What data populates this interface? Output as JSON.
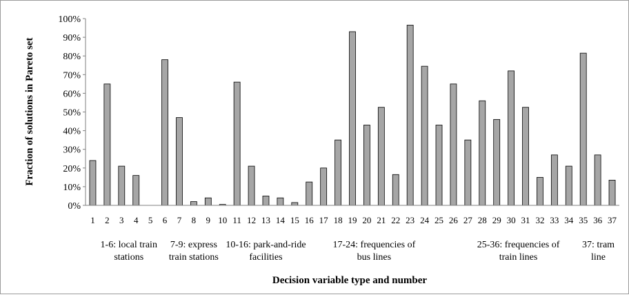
{
  "chart_data": {
    "type": "bar",
    "title": "",
    "xlabel": "Decision variable type and number",
    "ylabel": "Fraction of solutions in Pareto set",
    "ylim": [
      0,
      1
    ],
    "yticks": [
      "0%",
      "10%",
      "20%",
      "30%",
      "40%",
      "50%",
      "60%",
      "70%",
      "80%",
      "90%",
      "100%"
    ],
    "grid": false,
    "bar_color": "#a6a6a6",
    "bar_edge_color": "#000000",
    "categories": [
      "1",
      "2",
      "3",
      "4",
      "5",
      "6",
      "7",
      "8",
      "9",
      "10",
      "11",
      "12",
      "13",
      "14",
      "15",
      "16",
      "17",
      "18",
      "19",
      "20",
      "21",
      "22",
      "23",
      "24",
      "25",
      "26",
      "27",
      "28",
      "29",
      "30",
      "31",
      "32",
      "33",
      "34",
      "35",
      "36",
      "37"
    ],
    "values": [
      0.24,
      0.65,
      0.21,
      0.16,
      0.0,
      0.78,
      0.47,
      0.02,
      0.04,
      0.005,
      0.66,
      0.21,
      0.05,
      0.04,
      0.015,
      0.125,
      0.2,
      0.35,
      0.93,
      0.43,
      0.525,
      0.165,
      0.965,
      0.745,
      0.43,
      0.65,
      0.35,
      0.56,
      0.46,
      0.72,
      0.525,
      0.15,
      0.27,
      0.21,
      0.815,
      0.27,
      0.135
    ],
    "groups": [
      {
        "line1": "1-6: local train",
        "line2": "stations",
        "first": 1,
        "last": 6
      },
      {
        "line1": "7-9: express",
        "line2": "train stations",
        "first": 7,
        "last": 9
      },
      {
        "line1": "10-16: park-and-ride",
        "line2": "facilities",
        "first": 10,
        "last": 16
      },
      {
        "line1": "17-24: frequencies of",
        "line2": "bus lines",
        "first": 17,
        "last": 24
      },
      {
        "line1": "25-36: frequencies of",
        "line2": "train lines",
        "first": 25,
        "last": 36
      },
      {
        "line1": "37: tram",
        "line2": "line",
        "first": 37,
        "last": 37
      }
    ]
  }
}
